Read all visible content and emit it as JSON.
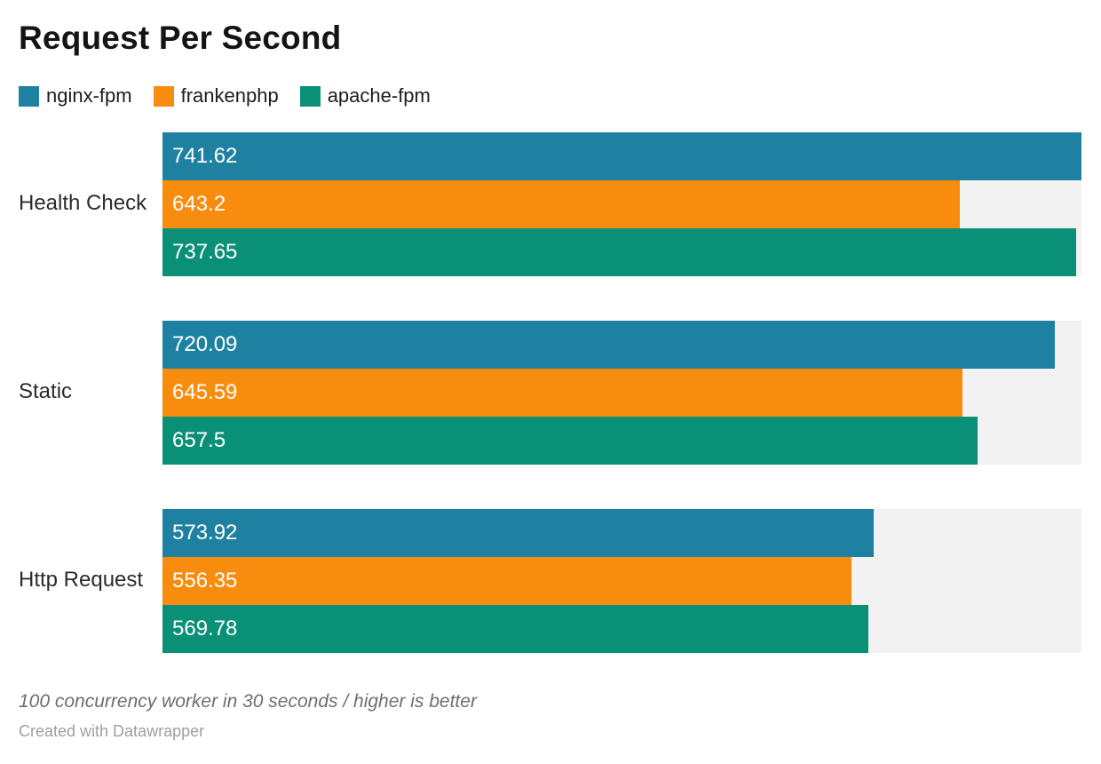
{
  "title": "Request Per Second",
  "legend": {
    "items": [
      {
        "label": "nginx-fpm",
        "color": "#1F81A1"
      },
      {
        "label": "frankenphp",
        "color": "#F88C0E"
      },
      {
        "label": "apache-fpm",
        "color": "#0A9076"
      }
    ]
  },
  "chart_data": {
    "type": "bar",
    "orientation": "horizontal",
    "title": "Request Per Second",
    "categories": [
      "Health Check",
      "Static",
      "Http Request"
    ],
    "series": [
      {
        "name": "nginx-fpm",
        "color": "#1F81A1",
        "values": [
          741.62,
          720.09,
          573.92
        ]
      },
      {
        "name": "frankenphp",
        "color": "#F88C0E",
        "values": [
          643.2,
          645.59,
          556.35
        ]
      },
      {
        "name": "apache-fpm",
        "color": "#0A9076",
        "values": [
          737.65,
          657.5,
          569.78
        ]
      }
    ],
    "xlim": [
      0,
      741.62
    ],
    "grid": false,
    "legend_position": "top",
    "value_labels_position": "inside-left",
    "value_label_color": "#ffffff",
    "track_color": "#F2F2F2"
  },
  "footer": {
    "note": "100 concurrency worker in 30 seconds / higher is better",
    "attribution": "Created with Datawrapper"
  }
}
